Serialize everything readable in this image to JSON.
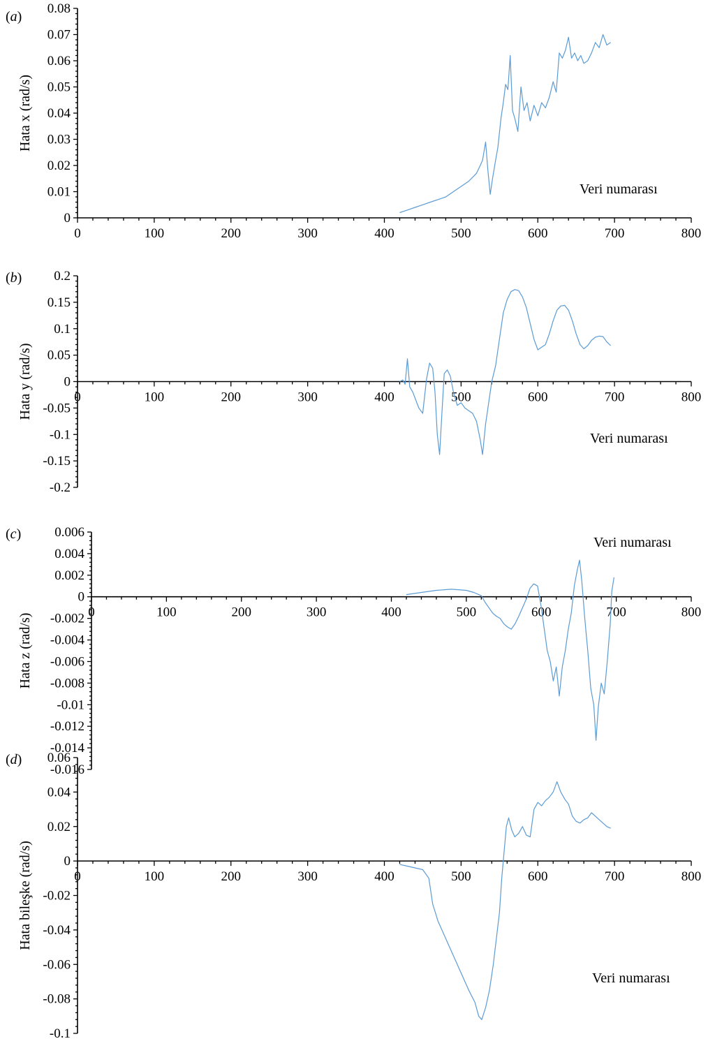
{
  "chart_data": [
    {
      "type": "line",
      "panel_label": "(a)",
      "ylabel": "Hata x (rad/s)",
      "xlabel": "Veri numarası",
      "xlim": [
        0,
        800
      ],
      "ylim": [
        0,
        0.08
      ],
      "x_ticks": [
        "0",
        "100",
        "200",
        "300",
        "400",
        "500",
        "600",
        "700",
        "800"
      ],
      "y_ticks": [
        "0",
        "0.01",
        "0.02",
        "0.03",
        "0.04",
        "0.05",
        "0.06",
        "0.07",
        "0.08"
      ],
      "grid": false,
      "series": [
        {
          "color": "#5b9bd5",
          "points": [
            [
              420,
              0.002
            ],
            [
              430,
              0.003
            ],
            [
              440,
              0.004
            ],
            [
              450,
              0.005
            ],
            [
              460,
              0.006
            ],
            [
              470,
              0.007
            ],
            [
              480,
              0.008
            ],
            [
              490,
              0.01
            ],
            [
              500,
              0.012
            ],
            [
              510,
              0.014
            ],
            [
              520,
              0.017
            ],
            [
              525,
              0.02
            ],
            [
              528,
              0.022
            ],
            [
              532,
              0.029
            ],
            [
              535,
              0.018
            ],
            [
              538,
              0.009
            ],
            [
              541,
              0.015
            ],
            [
              545,
              0.022
            ],
            [
              548,
              0.027
            ],
            [
              552,
              0.038
            ],
            [
              555,
              0.044
            ],
            [
              558,
              0.051
            ],
            [
              561,
              0.049
            ],
            [
              564,
              0.062
            ],
            [
              567,
              0.041
            ],
            [
              570,
              0.038
            ],
            [
              574,
              0.033
            ],
            [
              578,
              0.05
            ],
            [
              582,
              0.041
            ],
            [
              586,
              0.044
            ],
            [
              590,
              0.037
            ],
            [
              595,
              0.043
            ],
            [
              600,
              0.039
            ],
            [
              605,
              0.044
            ],
            [
              610,
              0.042
            ],
            [
              615,
              0.046
            ],
            [
              620,
              0.052
            ],
            [
              624,
              0.048
            ],
            [
              628,
              0.063
            ],
            [
              632,
              0.061
            ],
            [
              636,
              0.064
            ],
            [
              640,
              0.069
            ],
            [
              644,
              0.061
            ],
            [
              648,
              0.063
            ],
            [
              652,
              0.06
            ],
            [
              656,
              0.062
            ],
            [
              660,
              0.059
            ],
            [
              665,
              0.06
            ],
            [
              670,
              0.063
            ],
            [
              675,
              0.067
            ],
            [
              680,
              0.065
            ],
            [
              685,
              0.07
            ],
            [
              690,
              0.066
            ],
            [
              695,
              0.067
            ]
          ]
        }
      ]
    },
    {
      "type": "line",
      "panel_label": "(b)",
      "ylabel": "Hata y (rad/s)",
      "xlabel": "Veri numarası",
      "xlim": [
        0,
        800
      ],
      "ylim": [
        -0.2,
        0.2
      ],
      "x_ticks": [
        "0",
        "100",
        "200",
        "300",
        "400",
        "500",
        "600",
        "700",
        "800"
      ],
      "y_ticks": [
        "-0.2",
        "-0.15",
        "-0.1",
        "-0.05",
        "0",
        "0.05",
        "0.1",
        "0.15",
        "0.2"
      ],
      "grid": false,
      "series": [
        {
          "color": "#5b9bd5",
          "points": [
            [
              420,
              0.0
            ],
            [
              424,
              0.003
            ],
            [
              427,
              -0.005
            ],
            [
              430,
              0.043
            ],
            [
              433,
              -0.01
            ],
            [
              437,
              -0.02
            ],
            [
              441,
              -0.035
            ],
            [
              445,
              -0.05
            ],
            [
              450,
              -0.06
            ],
            [
              455,
              0.005
            ],
            [
              459,
              0.035
            ],
            [
              463,
              0.025
            ],
            [
              466,
              -0.02
            ],
            [
              469,
              -0.1
            ],
            [
              472,
              -0.138
            ],
            [
              475,
              -0.06
            ],
            [
              478,
              0.015
            ],
            [
              482,
              0.022
            ],
            [
              486,
              0.01
            ],
            [
              490,
              -0.02
            ],
            [
              495,
              -0.045
            ],
            [
              500,
              -0.04
            ],
            [
              505,
              -0.05
            ],
            [
              510,
              -0.055
            ],
            [
              515,
              -0.06
            ],
            [
              520,
              -0.075
            ],
            [
              525,
              -0.11
            ],
            [
              528,
              -0.138
            ],
            [
              532,
              -0.08
            ],
            [
              536,
              -0.04
            ],
            [
              540,
              0.0
            ],
            [
              545,
              0.03
            ],
            [
              550,
              0.08
            ],
            [
              555,
              0.13
            ],
            [
              560,
              0.155
            ],
            [
              565,
              0.17
            ],
            [
              570,
              0.174
            ],
            [
              575,
              0.172
            ],
            [
              580,
              0.16
            ],
            [
              585,
              0.14
            ],
            [
              590,
              0.11
            ],
            [
              595,
              0.08
            ],
            [
              600,
              0.06
            ],
            [
              605,
              0.065
            ],
            [
              610,
              0.07
            ],
            [
              615,
              0.09
            ],
            [
              620,
              0.115
            ],
            [
              625,
              0.135
            ],
            [
              630,
              0.143
            ],
            [
              635,
              0.144
            ],
            [
              640,
              0.135
            ],
            [
              645,
              0.115
            ],
            [
              650,
              0.09
            ],
            [
              655,
              0.07
            ],
            [
              660,
              0.062
            ],
            [
              665,
              0.068
            ],
            [
              670,
              0.078
            ],
            [
              675,
              0.084
            ],
            [
              680,
              0.086
            ],
            [
              685,
              0.085
            ],
            [
              690,
              0.075
            ],
            [
              695,
              0.068
            ]
          ]
        }
      ]
    },
    {
      "type": "line",
      "panel_label": "(c)",
      "ylabel": "Hata z (rad/s)",
      "xlabel": "Veri numarası",
      "xlim": [
        0,
        800
      ],
      "ylim": [
        -0.016,
        0.006
      ],
      "x_ticks": [
        "0",
        "100",
        "200",
        "300",
        "400",
        "500",
        "600",
        "700",
        "800"
      ],
      "y_ticks": [
        "-0.016",
        "-0.014",
        "-0.012",
        "-0.01",
        "-0.008",
        "-0.006",
        "-0.004",
        "-0.002",
        "0",
        "0.002",
        "0.004",
        "0.006"
      ],
      "grid": false,
      "series": [
        {
          "color": "#5b9bd5",
          "points": [
            [
              420,
              0.0002
            ],
            [
              440,
              0.0004
            ],
            [
              460,
              0.0006
            ],
            [
              480,
              0.0007
            ],
            [
              500,
              0.0006
            ],
            [
              510,
              0.0004
            ],
            [
              520,
              0.0001
            ],
            [
              525,
              -0.0005
            ],
            [
              530,
              -0.001
            ],
            [
              535,
              -0.0015
            ],
            [
              540,
              -0.0018
            ],
            [
              545,
              -0.002
            ],
            [
              550,
              -0.0025
            ],
            [
              555,
              -0.0028
            ],
            [
              560,
              -0.003
            ],
            [
              565,
              -0.0025
            ],
            [
              570,
              -0.0018
            ],
            [
              575,
              -0.001
            ],
            [
              580,
              -0.0002
            ],
            [
              585,
              0.0008
            ],
            [
              590,
              0.0012
            ],
            [
              595,
              0.001
            ],
            [
              600,
              -0.001
            ],
            [
              604,
              -0.003
            ],
            [
              608,
              -0.005
            ],
            [
              612,
              -0.006
            ],
            [
              616,
              -0.0078
            ],
            [
              620,
              -0.0065
            ],
            [
              624,
              -0.0092
            ],
            [
              628,
              -0.0065
            ],
            [
              632,
              -0.005
            ],
            [
              636,
              -0.003
            ],
            [
              640,
              -0.0015
            ],
            [
              644,
              0.001
            ],
            [
              648,
              0.0025
            ],
            [
              651,
              0.0034
            ],
            [
              654,
              0.0015
            ],
            [
              658,
              -0.002
            ],
            [
              662,
              -0.005
            ],
            [
              666,
              -0.0085
            ],
            [
              670,
              -0.01
            ],
            [
              673,
              -0.0133
            ],
            [
              676,
              -0.0102
            ],
            [
              680,
              -0.008
            ],
            [
              684,
              -0.009
            ],
            [
              688,
              -0.006
            ],
            [
              692,
              -0.0025
            ],
            [
              694,
              0.0005
            ],
            [
              697,
              0.0018
            ]
          ]
        }
      ]
    },
    {
      "type": "line",
      "panel_label": "(d)",
      "ylabel": "Hata bileşke (rad/s)",
      "xlabel": "Veri numarası",
      "xlim": [
        0,
        800
      ],
      "ylim": [
        -0.1,
        0.06
      ],
      "x_ticks": [
        "0",
        "100",
        "200",
        "300",
        "400",
        "500",
        "600",
        "700",
        "800"
      ],
      "y_ticks": [
        "-0.1",
        "-0.08",
        "-0.06",
        "-0.04",
        "-0.02",
        "0",
        "0.02",
        "0.04",
        "0.06"
      ],
      "grid": false,
      "series": [
        {
          "color": "#5b9bd5",
          "points": [
            [
              420,
              -0.002
            ],
            [
              430,
              -0.003
            ],
            [
              440,
              -0.004
            ],
            [
              450,
              -0.005
            ],
            [
              458,
              -0.01
            ],
            [
              463,
              -0.025
            ],
            [
              470,
              -0.035
            ],
            [
              480,
              -0.045
            ],
            [
              490,
              -0.055
            ],
            [
              500,
              -0.065
            ],
            [
              510,
              -0.075
            ],
            [
              518,
              -0.082
            ],
            [
              523,
              -0.09
            ],
            [
              527,
              -0.092
            ],
            [
              532,
              -0.085
            ],
            [
              537,
              -0.075
            ],
            [
              542,
              -0.06
            ],
            [
              546,
              -0.045
            ],
            [
              550,
              -0.03
            ],
            [
              553,
              -0.01
            ],
            [
              556,
              0.005
            ],
            [
              559,
              0.02
            ],
            [
              562,
              0.025
            ],
            [
              566,
              0.018
            ],
            [
              570,
              0.014
            ],
            [
              575,
              0.016
            ],
            [
              580,
              0.02
            ],
            [
              585,
              0.015
            ],
            [
              590,
              0.014
            ],
            [
              595,
              0.03
            ],
            [
              600,
              0.034
            ],
            [
              605,
              0.032
            ],
            [
              610,
              0.035
            ],
            [
              615,
              0.037
            ],
            [
              620,
              0.04
            ],
            [
              625,
              0.046
            ],
            [
              630,
              0.04
            ],
            [
              635,
              0.036
            ],
            [
              640,
              0.033
            ],
            [
              645,
              0.026
            ],
            [
              650,
              0.023
            ],
            [
              655,
              0.022
            ],
            [
              660,
              0.024
            ],
            [
              665,
              0.025
            ],
            [
              670,
              0.028
            ],
            [
              675,
              0.026
            ],
            [
              680,
              0.024
            ],
            [
              685,
              0.022
            ],
            [
              690,
              0.02
            ],
            [
              695,
              0.019
            ]
          ]
        }
      ]
    }
  ]
}
